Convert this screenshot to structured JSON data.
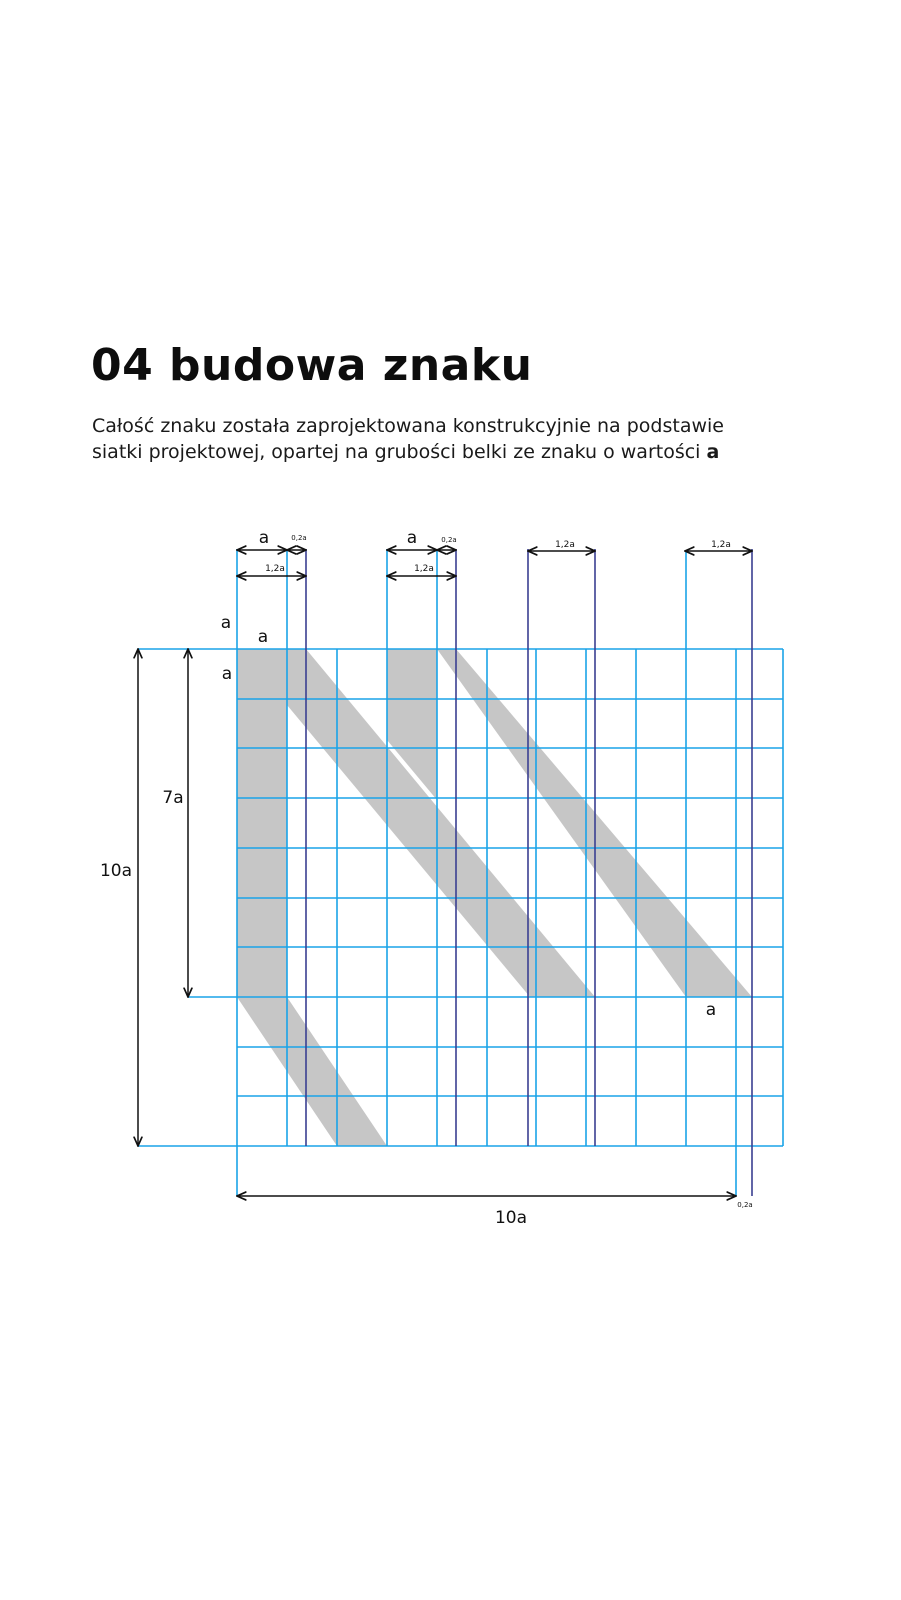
{
  "header": {
    "title": "04 budowa znaku"
  },
  "intro": {
    "line1": "Całość znaku została zaprojektowana konstrukcyjnie na podstawie",
    "line2_prefix": "siatki projektowej, opartej na grubości belki ze znaku o wartości ",
    "line2_emphasis": "a"
  },
  "colors": {
    "grid": "#1aa3e8",
    "guide": "#3a3f91",
    "shape": "#c6c6c6",
    "dimension": "#111111"
  },
  "diagram": {
    "units": "a",
    "labels": {
      "top_a_1": "a",
      "top_02a_1": "0,2a",
      "top_12a_1": "1,2a",
      "top_a_2": "a",
      "top_02a_2": "0,2a",
      "top_12a_2": "1,2a",
      "top_12a_3": "1,2a",
      "top_12a_4": "1,2a",
      "left_a_outer": "a",
      "cell_a_top": "a",
      "left_a_inner": "a",
      "height_7a": "7a",
      "height_10a": "10a",
      "bottom_a": "a",
      "width_10a": "10a",
      "bottom_02a": "0,2a"
    }
  }
}
